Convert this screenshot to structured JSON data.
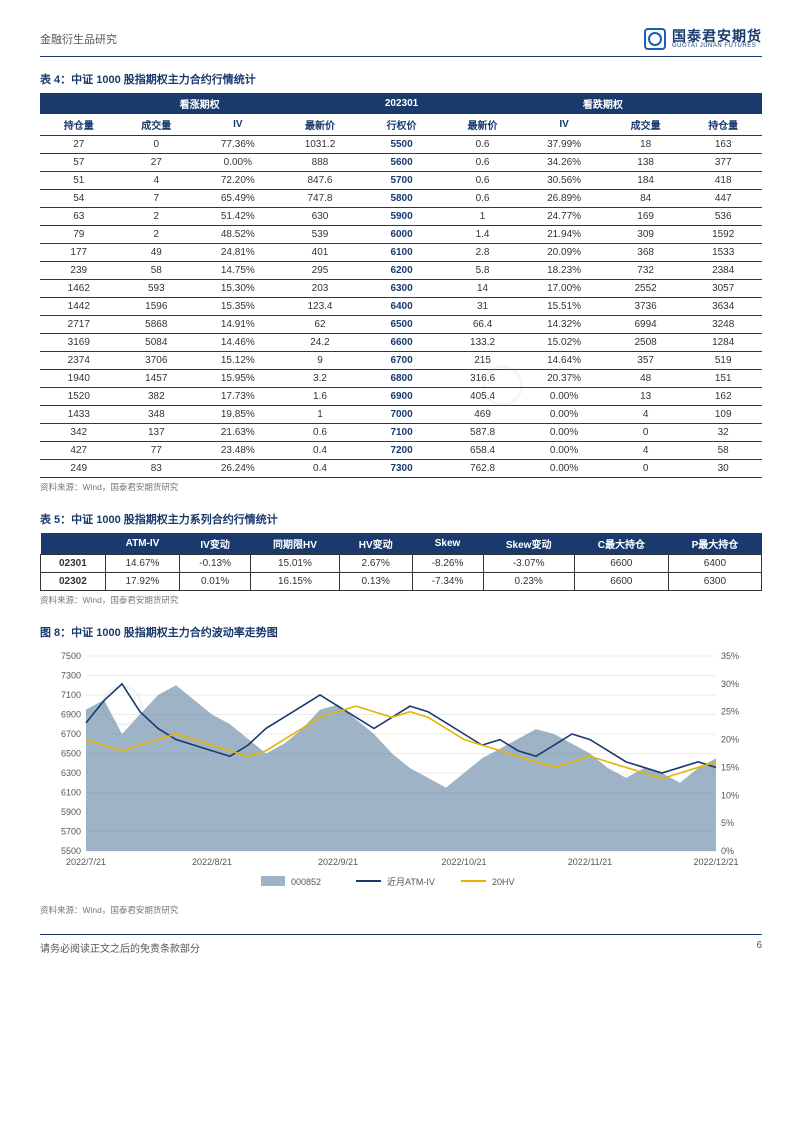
{
  "header": {
    "category": "金融衍生品研究",
    "logo_cn": "国泰君安期货",
    "logo_en": "GUOTAI JUNAN FUTURES"
  },
  "table4": {
    "title": "表 4：中证 1000 股指期权主力合约行情统计",
    "head_call": "看涨期权",
    "head_mid": "202301",
    "head_put": "看跌期权",
    "cols": [
      "持仓量",
      "成交量",
      "IV",
      "最新价",
      "行权价",
      "最新价",
      "IV",
      "成交量",
      "持仓量"
    ],
    "rows": [
      [
        "27",
        "0",
        "77.36%",
        "1031.2",
        "5500",
        "0.6",
        "37.99%",
        "18",
        "163"
      ],
      [
        "57",
        "27",
        "0.00%",
        "888",
        "5600",
        "0.6",
        "34.26%",
        "138",
        "377"
      ],
      [
        "51",
        "4",
        "72.20%",
        "847.6",
        "5700",
        "0.6",
        "30.56%",
        "184",
        "418"
      ],
      [
        "54",
        "7",
        "65.49%",
        "747.8",
        "5800",
        "0.6",
        "26.89%",
        "84",
        "447"
      ],
      [
        "63",
        "2",
        "51.42%",
        "630",
        "5900",
        "1",
        "24.77%",
        "169",
        "536"
      ],
      [
        "79",
        "2",
        "48.52%",
        "539",
        "6000",
        "1.4",
        "21.94%",
        "309",
        "1592"
      ],
      [
        "177",
        "49",
        "24.81%",
        "401",
        "6100",
        "2.8",
        "20.09%",
        "368",
        "1533"
      ],
      [
        "239",
        "58",
        "14.75%",
        "295",
        "6200",
        "5.8",
        "18.23%",
        "732",
        "2384"
      ],
      [
        "1462",
        "593",
        "15.30%",
        "203",
        "6300",
        "14",
        "17.00%",
        "2552",
        "3057"
      ],
      [
        "1442",
        "1596",
        "15.35%",
        "123.4",
        "6400",
        "31",
        "15.51%",
        "3736",
        "3634"
      ],
      [
        "2717",
        "5868",
        "14.91%",
        "62",
        "6500",
        "66.4",
        "14.32%",
        "6994",
        "3248"
      ],
      [
        "3169",
        "5084",
        "14.46%",
        "24.2",
        "6600",
        "133.2",
        "15.02%",
        "2508",
        "1284"
      ],
      [
        "2374",
        "3706",
        "15.12%",
        "9",
        "6700",
        "215",
        "14.64%",
        "357",
        "519"
      ],
      [
        "1940",
        "1457",
        "15.95%",
        "3.2",
        "6800",
        "316.6",
        "20.37%",
        "48",
        "151"
      ],
      [
        "1520",
        "382",
        "17.73%",
        "1.6",
        "6900",
        "405.4",
        "0.00%",
        "13",
        "162"
      ],
      [
        "1433",
        "348",
        "19.85%",
        "1",
        "7000",
        "469",
        "0.00%",
        "4",
        "109"
      ],
      [
        "342",
        "137",
        "21.63%",
        "0.6",
        "7100",
        "587.8",
        "0.00%",
        "0",
        "32"
      ],
      [
        "427",
        "77",
        "23.48%",
        "0.4",
        "7200",
        "658.4",
        "0.00%",
        "4",
        "58"
      ],
      [
        "249",
        "83",
        "26.24%",
        "0.4",
        "7300",
        "762.8",
        "0.00%",
        "0",
        "30"
      ]
    ],
    "source": "资料来源：Wind，国泰君安期货研究"
  },
  "table5": {
    "title": "表 5：中证 1000 股指期权主力系列合约行情统计",
    "cols": [
      "",
      "ATM-IV",
      "IV变动",
      "同期限HV",
      "HV变动",
      "Skew",
      "Skew变动",
      "C最大持仓",
      "P最大持仓"
    ],
    "rows": [
      [
        "02301",
        "14.67%",
        "-0.13%",
        "15.01%",
        "2.67%",
        "-8.26%",
        "-3.07%",
        "6600",
        "6400"
      ],
      [
        "02302",
        "17.92%",
        "0.01%",
        "16.15%",
        "0.13%",
        "-7.34%",
        "0.23%",
        "6600",
        "6300"
      ]
    ],
    "source": "资料来源：Wind，国泰君安期货研究"
  },
  "chart8": {
    "title": "图 8：中证 1000 股指期权主力合约波动率走势图",
    "type": "line_area_dual_axis",
    "x_labels": [
      "2022/7/21",
      "2022/8/21",
      "2022/9/21",
      "2022/10/21",
      "2022/11/21",
      "2022/12/21"
    ],
    "y_left": {
      "min": 5500,
      "max": 7500,
      "step": 200,
      "ticks": [
        5500,
        5700,
        5900,
        6100,
        6300,
        6500,
        6700,
        6900,
        7100,
        7300,
        7500
      ]
    },
    "y_right": {
      "min": 0,
      "max": 0.35,
      "step": 0.05,
      "ticks": [
        "0%",
        "5%",
        "10%",
        "15%",
        "20%",
        "25%",
        "30%",
        "35%"
      ]
    },
    "legend": [
      "000852",
      "近月ATM-IV",
      "20HV"
    ],
    "colors": {
      "area": "#6b8aa8",
      "iv": "#1a3a6e",
      "hv": "#e6b400",
      "grid": "#d8d8d8",
      "bg": "#ffffff"
    },
    "series_index": {
      "x": [
        0,
        1,
        2,
        3,
        4,
        5,
        6,
        7,
        8,
        9,
        10,
        11,
        12,
        13,
        14,
        15,
        16,
        17,
        18,
        19,
        20,
        21,
        22,
        23,
        24,
        25,
        26,
        27,
        28,
        29,
        30,
        31,
        32,
        33,
        34,
        35
      ],
      "index": [
        6950,
        7050,
        6700,
        6900,
        7100,
        7200,
        7050,
        6900,
        6800,
        6650,
        6500,
        6600,
        6750,
        6950,
        7000,
        6850,
        6700,
        6500,
        6350,
        6250,
        6150,
        6300,
        6450,
        6550,
        6650,
        6750,
        6700,
        6600,
        6500,
        6350,
        6250,
        6350,
        6300,
        6200,
        6350,
        6450
      ],
      "iv": [
        0.23,
        0.27,
        0.3,
        0.25,
        0.22,
        0.2,
        0.19,
        0.18,
        0.17,
        0.19,
        0.22,
        0.24,
        0.26,
        0.28,
        0.26,
        0.24,
        0.22,
        0.24,
        0.26,
        0.25,
        0.23,
        0.21,
        0.19,
        0.2,
        0.18,
        0.17,
        0.19,
        0.21,
        0.2,
        0.18,
        0.16,
        0.15,
        0.14,
        0.15,
        0.16,
        0.15
      ],
      "hv": [
        0.2,
        0.19,
        0.18,
        0.19,
        0.2,
        0.21,
        0.2,
        0.19,
        0.18,
        0.17,
        0.18,
        0.2,
        0.22,
        0.24,
        0.25,
        0.26,
        0.25,
        0.24,
        0.25,
        0.24,
        0.22,
        0.2,
        0.19,
        0.18,
        0.17,
        0.16,
        0.15,
        0.16,
        0.17,
        0.16,
        0.15,
        0.14,
        0.13,
        0.14,
        0.15,
        0.16
      ]
    },
    "source": "资料来源：Wind，国泰君安期货研究"
  },
  "footer": {
    "disclaimer": "请务必阅读正文之后的免责条款部分",
    "page": "6"
  }
}
